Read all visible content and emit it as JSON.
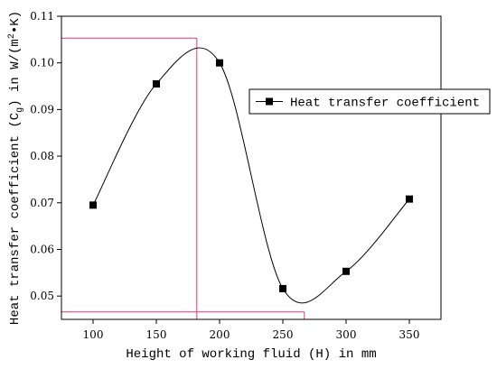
{
  "chart_data": {
    "type": "line",
    "title": "",
    "xlabel": "Height of working fluid (H) in mm",
    "ylabel_parts": {
      "before": "Heat transfer coefficient (C",
      "sub": "g",
      "middle": ") in W/(m",
      "sup": "2",
      "after": "•K)"
    },
    "xlim": [
      75,
      375
    ],
    "ylim": [
      0.045,
      0.11
    ],
    "x_ticks": [
      100,
      150,
      200,
      250,
      300,
      350
    ],
    "y_ticks": [
      0.05,
      0.06,
      0.07,
      0.08,
      0.09,
      0.1,
      0.11
    ],
    "y_tick_labels": [
      "0.05",
      "0.06",
      "0.07",
      "0.08",
      "0.09",
      "0.10",
      "0.11"
    ],
    "grid": false,
    "legend_position": "right",
    "series": [
      {
        "name": "Heat transfer coefficient",
        "marker": "square",
        "color": "#000000",
        "smooth": true,
        "x": [
          100,
          150,
          200,
          250,
          300,
          350
        ],
        "y": [
          0.0695,
          0.0955,
          0.1,
          0.0516,
          0.0553,
          0.0708
        ]
      }
    ],
    "annotations": {
      "color": "#e8336d",
      "max_point": {
        "x": 182,
        "y": 0.1053
      },
      "min_point": {
        "x": 267,
        "y": 0.0466
      }
    }
  }
}
